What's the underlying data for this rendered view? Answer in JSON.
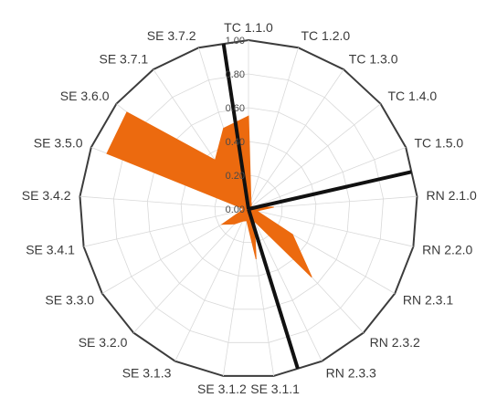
{
  "chart_data": {
    "type": "radar",
    "categories": [
      "TC 1.1.0",
      "TC 1.2.0",
      "TC 1.3.0",
      "TC 1.4.0",
      "TC 1.5.0",
      "RN 2.1.0",
      "RN 2.2.0",
      "RN 2.3.1",
      "RN 2.3.2",
      "RN 2.3.3",
      "SE 3.1.1",
      "SE 3.1.2",
      "SE 3.1.3",
      "SE 3.2.0",
      "SE 3.3.0",
      "SE 3.4.1",
      "SE 3.4.2",
      "SE 3.5.0",
      "SE 3.6.0",
      "SE 3.7.1",
      "SE 3.7.2"
    ],
    "series": [
      {
        "values": [
          0.55,
          0.05,
          0.03,
          0.02,
          0.03,
          0.15,
          0.05,
          0.3,
          0.55,
          0.08,
          0.3,
          0.07,
          0.08,
          0.12,
          0.18,
          0.04,
          0.03,
          0.9,
          0.92,
          0.35,
          0.5
        ]
      }
    ],
    "rlim": [
      0,
      1.0
    ],
    "ticks": [
      {
        "value": 0,
        "label": "0.00"
      },
      {
        "value": 0.2,
        "label": "0.20"
      },
      {
        "value": 0.4,
        "label": "0.40"
      },
      {
        "value": 0.6,
        "label": "0.60"
      },
      {
        "value": 0.8,
        "label": "0.80"
      },
      {
        "value": 1.0,
        "label": "1.00"
      }
    ],
    "separator_after": [
      "SE 3.7.2",
      "TC 1.5.0",
      "RN 2.3.3"
    ],
    "grid": true,
    "colors": {
      "fill": "#ec6a0f",
      "grid": "#d9d9d9",
      "outline": "#3c3c3c",
      "separator": "#111111"
    }
  }
}
